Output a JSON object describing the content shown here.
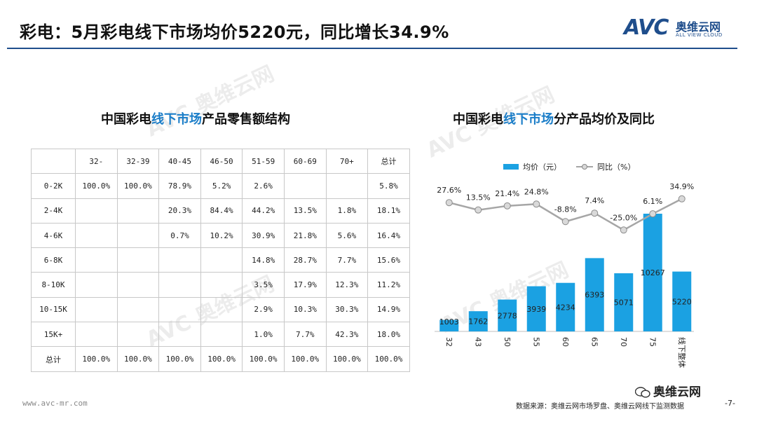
{
  "title": "彩电：5月彩电线下市场均价5220元，同比增长34.9%",
  "logo": {
    "mark": "AVC",
    "cn": "奥维云网",
    "en": "ALL VIEW CLOUD"
  },
  "watermark": {
    "mark": "AVC",
    "cn": "奥维云网",
    "en": "ALL VIEW CLOUD"
  },
  "table_title": {
    "pre": "中国彩电",
    "highlight": "线下市场",
    "post": "产品零售额结构"
  },
  "chart_title": {
    "pre": "中国彩电",
    "highlight": "线下市场",
    "post": "分产品均价及同比"
  },
  "table": {
    "columns": [
      "32-",
      "32-39",
      "40-45",
      "46-50",
      "51-59",
      "60-69",
      "70+",
      "总计"
    ],
    "rows": [
      {
        "label": "0-2K",
        "cells": [
          "100.0%",
          "100.0%",
          "78.9%",
          "5.2%",
          "2.6%",
          "",
          "",
          "5.8%"
        ]
      },
      {
        "label": "2-4K",
        "cells": [
          "",
          "",
          "20.3%",
          "84.4%",
          "44.2%",
          "13.5%",
          "1.8%",
          "18.1%"
        ]
      },
      {
        "label": "4-6K",
        "cells": [
          "",
          "",
          "0.7%",
          "10.2%",
          "30.9%",
          "21.8%",
          "5.6%",
          "16.4%"
        ]
      },
      {
        "label": "6-8K",
        "cells": [
          "",
          "",
          "",
          "",
          "14.8%",
          "28.7%",
          "7.7%",
          "15.6%"
        ]
      },
      {
        "label": "8-10K",
        "cells": [
          "",
          "",
          "",
          "",
          "3.5%",
          "17.9%",
          "12.3%",
          "11.2%"
        ]
      },
      {
        "label": "10-15K",
        "cells": [
          "",
          "",
          "",
          "",
          "2.9%",
          "10.3%",
          "30.3%",
          "14.9%"
        ]
      },
      {
        "label": "15K+",
        "cells": [
          "",
          "",
          "",
          "",
          "1.0%",
          "7.7%",
          "42.3%",
          "18.0%"
        ]
      },
      {
        "label": "总计",
        "cells": [
          "100.0%",
          "100.0%",
          "100.0%",
          "100.0%",
          "100.0%",
          "100.0%",
          "100.0%",
          "100.0%"
        ]
      }
    ]
  },
  "chart_data": {
    "type": "bar",
    "categories": [
      "32",
      "43",
      "50",
      "55",
      "60",
      "65",
      "70",
      "75",
      "线下整体"
    ],
    "series": [
      {
        "name": "均价（元）",
        "type": "bar",
        "color": "#1ba1e2",
        "values": [
          1003,
          1762,
          2778,
          3939,
          4234,
          6393,
          5071,
          10267,
          5220
        ],
        "labels": [
          "1003",
          "1762",
          "2778",
          "3939",
          "4234",
          "6393",
          "5071",
          "10267",
          "5220"
        ]
      },
      {
        "name": "同比（%）",
        "type": "line",
        "color": "#a6a6a6",
        "values": [
          27.6,
          13.5,
          21.4,
          24.8,
          -8.8,
          7.4,
          -25.0,
          6.1,
          34.9
        ],
        "labels": [
          "27.6%",
          "13.5%",
          "21.4%",
          "24.8%",
          "-8.8%",
          "7.4%",
          "-25.0%",
          "6.1%",
          "34.9%"
        ]
      }
    ],
    "legend_position": "top",
    "grid": false
  },
  "footer": {
    "url": "www.avc-mr.com",
    "source": "数据来源：奥维云网市场罗盘、奥维云网线下监测数据",
    "page": "-7-",
    "wechat": "奥维云网"
  }
}
